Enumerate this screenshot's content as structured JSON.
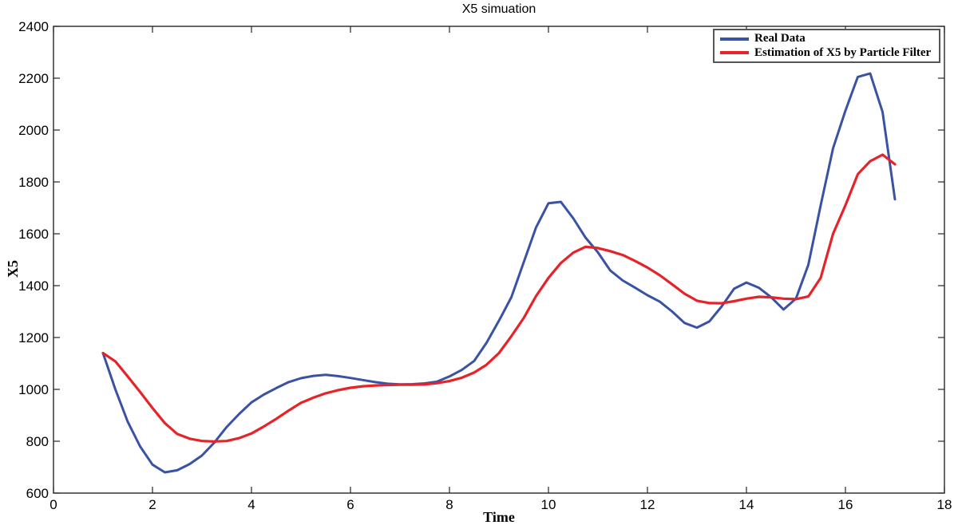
{
  "figure": {
    "background": "#FFFFFF",
    "axis_color": "#262626",
    "text_color": "#000000"
  },
  "chart_data": {
    "type": "line",
    "title": "X5 simuation",
    "xlabel": "Time",
    "ylabel": "X5",
    "xlim": [
      0,
      18
    ],
    "ylim": [
      600,
      2400
    ],
    "xticks": [
      0,
      2,
      4,
      6,
      8,
      10,
      12,
      14,
      16,
      18
    ],
    "yticks": [
      600,
      800,
      1000,
      1200,
      1400,
      1600,
      1800,
      2000,
      2200,
      2400
    ],
    "grid": false,
    "legend": {
      "position": "top-right",
      "border_color": "#555555"
    },
    "x": [
      1,
      1.25,
      1.5,
      1.75,
      2,
      2.25,
      2.5,
      2.75,
      3,
      3.25,
      3.5,
      3.75,
      4,
      4.25,
      4.5,
      4.75,
      5,
      5.25,
      5.5,
      5.75,
      6,
      6.25,
      6.5,
      6.75,
      7,
      7.25,
      7.5,
      7.75,
      8,
      8.25,
      8.5,
      8.75,
      9,
      9.25,
      9.5,
      9.75,
      10,
      10.25,
      10.5,
      10.75,
      11,
      11.25,
      11.5,
      11.75,
      12,
      12.25,
      12.5,
      12.75,
      13,
      13.25,
      13.5,
      13.75,
      14,
      14.25,
      14.5,
      14.75,
      15,
      15.25,
      15.5,
      15.75,
      16,
      16.25,
      16.5,
      16.75,
      17
    ],
    "series": [
      {
        "name": "Real Data",
        "color": "#3A52A3",
        "line_width": 3,
        "values": [
          1140,
          1000,
          875,
          780,
          710,
          680,
          688,
          712,
          745,
          795,
          855,
          905,
          950,
          980,
          1005,
          1028,
          1043,
          1052,
          1056,
          1051,
          1044,
          1036,
          1028,
          1022,
          1019,
          1020,
          1023,
          1030,
          1050,
          1075,
          1110,
          1180,
          1265,
          1355,
          1490,
          1625,
          1718,
          1723,
          1660,
          1585,
          1528,
          1458,
          1420,
          1392,
          1363,
          1338,
          1300,
          1256,
          1238,
          1262,
          1320,
          1388,
          1412,
          1392,
          1355,
          1308,
          1350,
          1480,
          1710,
          1930,
          2075,
          2205,
          2218,
          2070,
          1733
        ]
      },
      {
        "name": "Estimation of X5 by Particle Filter",
        "color": "#E62329",
        "line_width": 3.2,
        "values": [
          1140,
          1108,
          1050,
          990,
          928,
          870,
          828,
          810,
          801,
          799,
          801,
          812,
          830,
          857,
          886,
          918,
          948,
          968,
          985,
          997,
          1006,
          1012,
          1015,
          1017,
          1018,
          1018,
          1019,
          1024,
          1032,
          1045,
          1065,
          1095,
          1140,
          1205,
          1275,
          1360,
          1430,
          1487,
          1527,
          1550,
          1545,
          1533,
          1518,
          1495,
          1470,
          1440,
          1405,
          1369,
          1342,
          1333,
          1332,
          1340,
          1350,
          1357,
          1355,
          1350,
          1348,
          1358,
          1430,
          1600,
          1710,
          1830,
          1880,
          1905,
          1868
        ]
      }
    ]
  }
}
